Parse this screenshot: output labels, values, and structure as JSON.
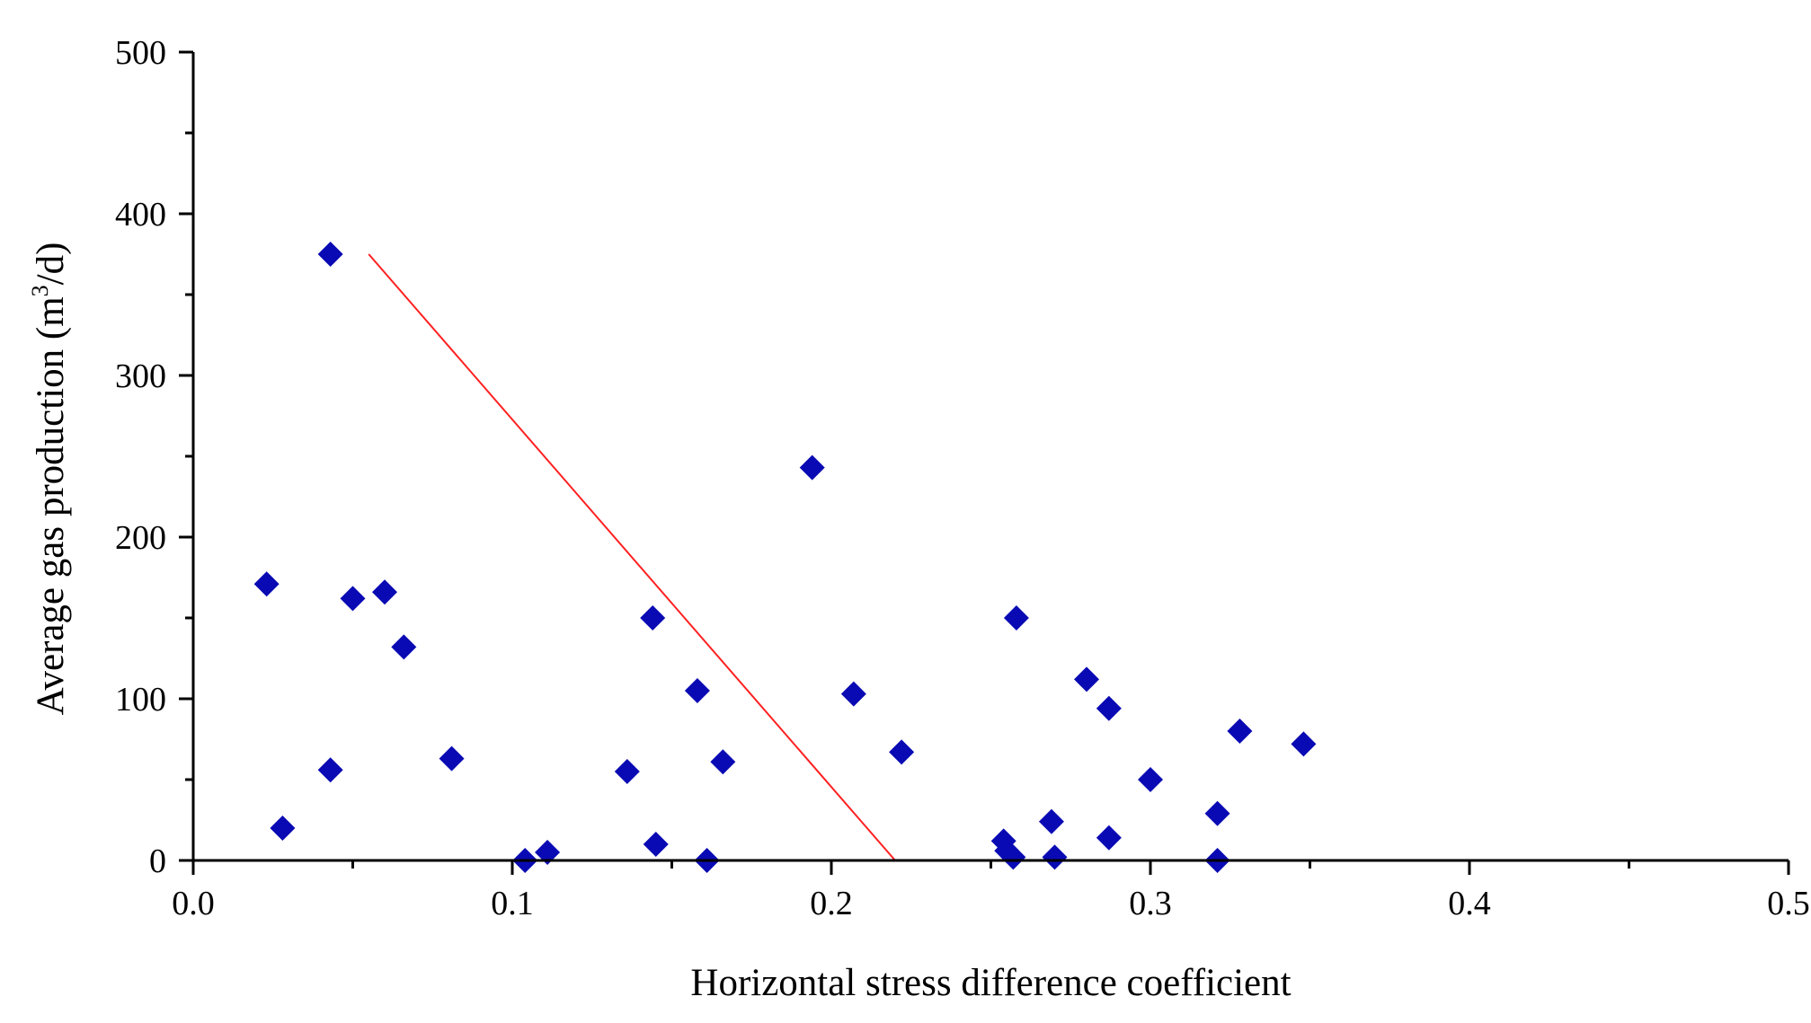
{
  "chart_data": {
    "type": "scatter",
    "title": "",
    "xlabel": "Horizontal stress difference coefficient",
    "ylabel": "Average gas production (m³/d)",
    "ylabel_parts": {
      "pre": "Average gas production (m",
      "sup": "3",
      "post": "/d)"
    },
    "xlim": [
      0,
      0.5
    ],
    "ylim": [
      0,
      500
    ],
    "x_ticks": [
      0,
      0.1,
      0.2,
      0.3,
      0.4,
      0.5
    ],
    "x_tick_labels": [
      "0.0",
      "0.1",
      "0.2",
      "0.3",
      "0.4",
      "0.5"
    ],
    "x_minor_ticks": [
      0.05,
      0.15,
      0.25,
      0.35,
      0.45
    ],
    "y_ticks": [
      0,
      100,
      200,
      300,
      400,
      500
    ],
    "y_tick_labels": [
      "0",
      "100",
      "200",
      "300",
      "400",
      "500"
    ],
    "y_minor_ticks": [
      50,
      150,
      250,
      350,
      450
    ],
    "grid": false,
    "legend": "none",
    "marker_color": "#0a0ab4",
    "line_color": "#ff2020",
    "series": [
      {
        "name": "data",
        "marker": "diamond",
        "x": [
          0.023,
          0.028,
          0.043,
          0.043,
          0.05,
          0.06,
          0.066,
          0.081,
          0.104,
          0.111,
          0.136,
          0.144,
          0.145,
          0.158,
          0.161,
          0.166,
          0.194,
          0.207,
          0.222,
          0.254,
          0.255,
          0.257,
          0.258,
          0.269,
          0.27,
          0.28,
          0.287,
          0.287,
          0.3,
          0.321,
          0.321,
          0.328,
          0.348
        ],
        "y": [
          171,
          20,
          375,
          56,
          162,
          166,
          132,
          63,
          0,
          5,
          55,
          150,
          10,
          105,
          0,
          61,
          243,
          103,
          67,
          12,
          6,
          2,
          150,
          24,
          2,
          112,
          94,
          14,
          50,
          29,
          0,
          80,
          72
        ]
      },
      {
        "name": "trend",
        "type": "line",
        "x": [
          0.055,
          0.22
        ],
        "y": [
          375,
          0
        ]
      }
    ]
  }
}
